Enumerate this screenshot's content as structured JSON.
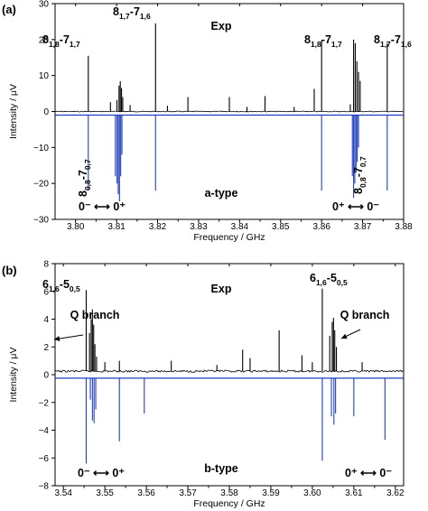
{
  "chart_data": [
    {
      "panel_label": "(a)",
      "type": "line",
      "xlabel": "Frequency / GHz",
      "ylabel": "Intensity / μV",
      "xlim": [
        3.795,
        3.88
      ],
      "ylim": [
        -30,
        30
      ],
      "xticks": [
        "3.80",
        "3.81",
        "3.82",
        "3.83",
        "3.84",
        "3.85",
        "3.86",
        "3.87",
        "3.88"
      ],
      "yticks": [
        "30",
        "20",
        "10",
        "0",
        "-10",
        "-20",
        "-30"
      ],
      "series": [
        {
          "label": "Exp",
          "color": "#000000",
          "peaks": [
            {
              "x": 3.8031,
              "y": 15.5
            },
            {
              "x": 3.8085,
              "y": 2.6
            },
            {
              "x": 3.8101,
              "y": 3.2
            },
            {
              "x": 3.8106,
              "y": 7.2
            },
            {
              "x": 3.8109,
              "y": 8.4
            },
            {
              "x": 3.8112,
              "y": 6.5
            },
            {
              "x": 3.8115,
              "y": 4.0
            },
            {
              "x": 3.8133,
              "y": 1.8
            },
            {
              "x": 3.8195,
              "y": 24.5
            },
            {
              "x": 3.8224,
              "y": 1.6
            },
            {
              "x": 3.8274,
              "y": 4.0
            },
            {
              "x": 3.8375,
              "y": 4.0
            },
            {
              "x": 3.8418,
              "y": 1.3
            },
            {
              "x": 3.8462,
              "y": 4.3
            },
            {
              "x": 3.8533,
              "y": 1.3
            },
            {
              "x": 3.8582,
              "y": 6.3
            },
            {
              "x": 3.86,
              "y": 19.8
            },
            {
              "x": 3.867,
              "y": 2.0
            },
            {
              "x": 3.8678,
              "y": 20.0
            },
            {
              "x": 3.8682,
              "y": 19.0
            },
            {
              "x": 3.8686,
              "y": 14.0
            },
            {
              "x": 3.869,
              "y": 11.0
            },
            {
              "x": 3.8694,
              "y": 8.5
            },
            {
              "x": 3.876,
              "y": 19.0
            }
          ]
        },
        {
          "label": "a-type",
          "color": "#1f3fbf",
          "peaks": [
            {
              "x": 3.8031,
              "y": -22
            },
            {
              "x": 3.8097,
              "y": -18
            },
            {
              "x": 3.8101,
              "y": -20
            },
            {
              "x": 3.8104,
              "y": -23
            },
            {
              "x": 3.8107,
              "y": -25
            },
            {
              "x": 3.811,
              "y": -18
            },
            {
              "x": 3.8113,
              "y": -12
            },
            {
              "x": 3.8195,
              "y": -22
            },
            {
              "x": 3.86,
              "y": -22
            },
            {
              "x": 3.8675,
              "y": -18
            },
            {
              "x": 3.8678,
              "y": -24
            },
            {
              "x": 3.8681,
              "y": -20
            },
            {
              "x": 3.8684,
              "y": -17
            },
            {
              "x": 3.8687,
              "y": -14
            },
            {
              "x": 3.869,
              "y": -10
            },
            {
              "x": 3.876,
              "y": -22
            }
          ]
        }
      ],
      "annotations": [
        {
          "id": "exp",
          "text": "Exp"
        },
        {
          "id": "trace",
          "text": "a-type"
        },
        {
          "id": "l1",
          "main": "8",
          "sub1": "1,8",
          "dash": "-7",
          "sub2": "1,7"
        },
        {
          "id": "l2",
          "main": "8",
          "sub1": "1,7",
          "dash": "-7",
          "sub2": "1,6"
        },
        {
          "id": "l3",
          "main": "8",
          "sub1": "1,8",
          "dash": "-7",
          "sub2": "1,7"
        },
        {
          "id": "l4",
          "main": "8",
          "sub1": "1,7",
          "dash": "-7",
          "sub2": "1,6"
        },
        {
          "id": "l5",
          "main": "8",
          "sub1": "0,8",
          "dash": "-7",
          "sub2": "0,7"
        },
        {
          "id": "l6",
          "main": "8",
          "sub1": "0,8",
          "dash": "-7",
          "sub2": "0,7"
        },
        {
          "id": "s1",
          "text": "0⁻ ⟷ 0⁺"
        },
        {
          "id": "s2",
          "text": "0⁺ ⟷ 0⁻"
        }
      ]
    },
    {
      "panel_label": "(b)",
      "type": "line",
      "xlabel": "Frequency / GHz",
      "ylabel": "Intensity / μV",
      "xlim": [
        3.538,
        3.622
      ],
      "ylim": [
        -8,
        8
      ],
      "xticks": [
        "3.54",
        "3.55",
        "3.56",
        "3.57",
        "3.58",
        "3.59",
        "3.60",
        "3.61",
        "3.62"
      ],
      "yticks": [
        "8",
        "6",
        "4",
        "2",
        "0",
        "-2",
        "-4",
        "-6",
        "-8"
      ],
      "series": [
        {
          "label": "Exp",
          "color": "#000000",
          "peaks": [
            {
              "x": 3.5455,
              "y": 6.1
            },
            {
              "x": 3.5463,
              "y": 3.0
            },
            {
              "x": 3.5467,
              "y": 4.0
            },
            {
              "x": 3.547,
              "y": 4.7
            },
            {
              "x": 3.5473,
              "y": 3.6
            },
            {
              "x": 3.5476,
              "y": 2.2
            },
            {
              "x": 3.548,
              "y": 1.3
            },
            {
              "x": 3.55,
              "y": 0.9
            },
            {
              "x": 3.5535,
              "y": 1.0
            },
            {
              "x": 3.566,
              "y": 1.0
            },
            {
              "x": 3.577,
              "y": 0.7
            },
            {
              "x": 3.5832,
              "y": 1.8
            },
            {
              "x": 3.585,
              "y": 1.2
            },
            {
              "x": 3.592,
              "y": 3.2
            },
            {
              "x": 3.5975,
              "y": 1.4
            },
            {
              "x": 3.6,
              "y": 0.9
            },
            {
              "x": 3.6024,
              "y": 6.2
            },
            {
              "x": 3.6042,
              "y": 2.8
            },
            {
              "x": 3.6048,
              "y": 3.8
            },
            {
              "x": 3.6051,
              "y": 4.1
            },
            {
              "x": 3.6054,
              "y": 3.2
            },
            {
              "x": 3.6058,
              "y": 2.0
            },
            {
              "x": 3.612,
              "y": 0.9
            }
          ]
        },
        {
          "label": "b-type",
          "color": "#1f3fbf",
          "peaks": [
            {
              "x": 3.5455,
              "y": -6.4
            },
            {
              "x": 3.5465,
              "y": -1.8
            },
            {
              "x": 3.547,
              "y": -3.3
            },
            {
              "x": 3.5474,
              "y": -3.5
            },
            {
              "x": 3.5478,
              "y": -2.5
            },
            {
              "x": 3.5535,
              "y": -4.8
            },
            {
              "x": 3.5595,
              "y": -2.8
            },
            {
              "x": 3.6024,
              "y": -6.2
            },
            {
              "x": 3.6046,
              "y": -3.0
            },
            {
              "x": 3.6052,
              "y": -3.6
            },
            {
              "x": 3.6056,
              "y": -2.8
            },
            {
              "x": 3.61,
              "y": -3.0
            },
            {
              "x": 3.6175,
              "y": -4.7
            }
          ]
        }
      ],
      "annotations": [
        {
          "id": "exp",
          "text": "Exp"
        },
        {
          "id": "trace",
          "text": "b-type"
        },
        {
          "id": "q1",
          "text": "Q branch"
        },
        {
          "id": "q2",
          "text": "Q branch"
        },
        {
          "id": "l1",
          "main": "6",
          "sub1": "1,6",
          "dash": "-5",
          "sub2": "0,5"
        },
        {
          "id": "l2",
          "main": "6",
          "sub1": "1,6",
          "dash": "-5",
          "sub2": "0,5"
        },
        {
          "id": "s1",
          "text": "0⁻ ⟷ 0⁺"
        },
        {
          "id": "s2",
          "text": "0⁺ ⟷ 0⁻"
        }
      ]
    }
  ]
}
